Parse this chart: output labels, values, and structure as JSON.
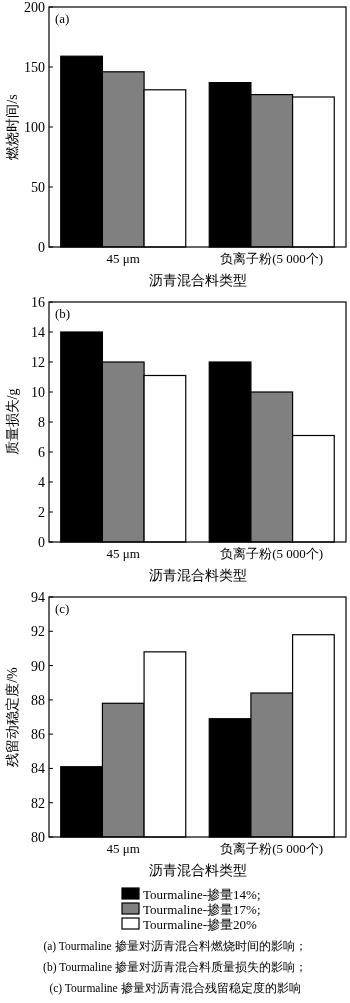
{
  "chart_data": [
    {
      "type": "bar",
      "title": "(a)",
      "categories": [
        "45 μm",
        "负离子粉(5 000个)"
      ],
      "xlabel": "沥青混合料类型",
      "ylabel": "燃烧时间/s",
      "ylim": [
        0,
        200
      ],
      "yticks": [
        0,
        50,
        100,
        150,
        200
      ],
      "grid": false,
      "series": [
        {
          "color": "#000000",
          "values": [
            159,
            137
          ]
        },
        {
          "color": "#808080",
          "values": [
            146,
            127
          ]
        },
        {
          "color": "#ffffff",
          "values": [
            131,
            125
          ]
        }
      ]
    },
    {
      "type": "bar",
      "title": "(b)",
      "categories": [
        "45 μm",
        "负离子粉(5 000个)"
      ],
      "xlabel": "沥青混合料类型",
      "ylabel": "质量损失/g",
      "ylim": [
        0,
        16
      ],
      "yticks": [
        0,
        2,
        4,
        6,
        8,
        10,
        12,
        14,
        16
      ],
      "grid": false,
      "series": [
        {
          "color": "#000000",
          "values": [
            14,
            12
          ]
        },
        {
          "color": "#808080",
          "values": [
            12,
            10
          ]
        },
        {
          "color": "#ffffff",
          "values": [
            11.1,
            7.1
          ]
        }
      ]
    },
    {
      "type": "bar",
      "title": "(c)",
      "categories": [
        "45 μm",
        "负离子粉(5 000个)"
      ],
      "xlabel": "沥青混合料类型",
      "ylabel": "残留动稳定度/%",
      "ylim": [
        80,
        94
      ],
      "yticks": [
        80,
        82,
        84,
        86,
        88,
        90,
        92,
        94
      ],
      "grid": false,
      "legend": "bottom",
      "series": [
        {
          "name": "Tourmaline-掺量14%;",
          "color": "#000000",
          "values": [
            84.1,
            86.9
          ]
        },
        {
          "name": "Tourmaline-掺量17%;",
          "color": "#808080",
          "values": [
            87.8,
            88.4
          ]
        },
        {
          "name": "Tourmaline-掺量20%",
          "color": "#ffffff",
          "values": [
            90.8,
            91.8
          ]
        }
      ],
      "annotations": [
        "(a) Tourmaline 掺量对沥青混合料燃烧时间的影响；",
        "(b) Tourmaline 掺量对沥青混合料质量损失的影响；",
        "(c) Tourmaline 掺量对沥青混合残留稳定度的影响"
      ]
    }
  ]
}
